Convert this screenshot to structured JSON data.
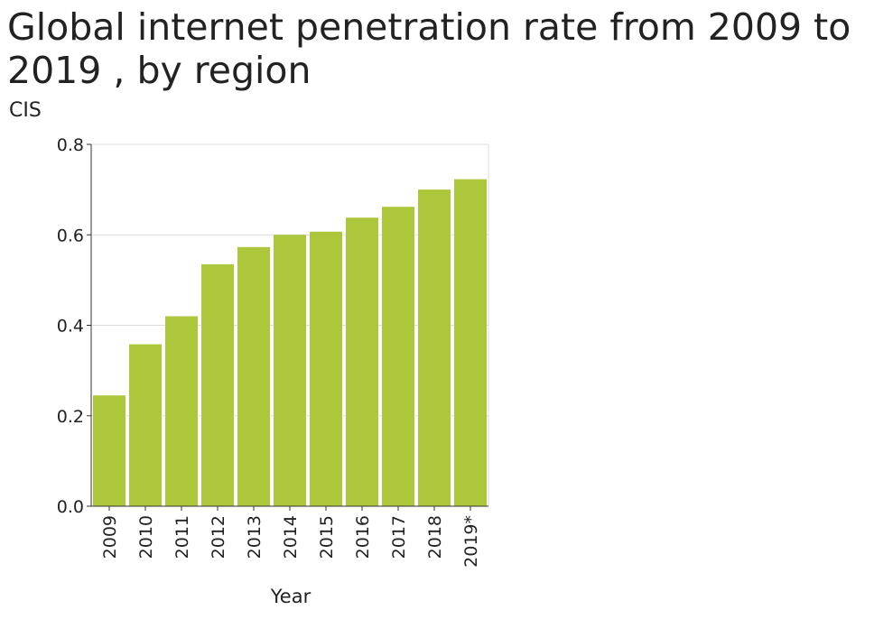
{
  "chart_data": {
    "type": "bar",
    "title": "Global internet penetration rate from 2009 to 2019 , by region",
    "ylabel": "CIS",
    "xlabel": "Year",
    "categories": [
      "2009",
      "2010",
      "2011",
      "2012",
      "2013",
      "2014",
      "2015",
      "2016",
      "2017",
      "2018",
      "2019*"
    ],
    "values": [
      0.245,
      0.358,
      0.42,
      0.535,
      0.573,
      0.6,
      0.607,
      0.638,
      0.662,
      0.7,
      0.723
    ],
    "ylim": [
      0,
      0.8
    ],
    "yticks": [
      "0.0",
      "0.2",
      "0.4",
      "0.6",
      "0.8"
    ],
    "grid": true,
    "bar_color": "#adc73c",
    "grid_color": "#dddddd",
    "axis_color": "#333333"
  }
}
